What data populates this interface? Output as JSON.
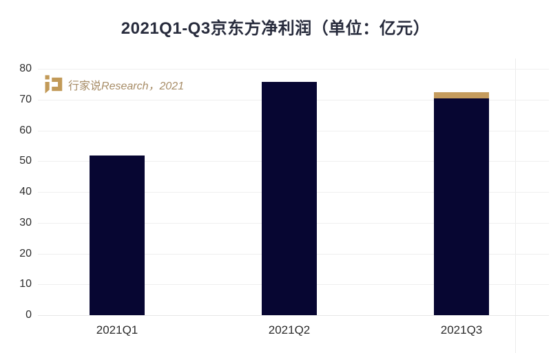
{
  "page": {
    "background": "#ffffff"
  },
  "watermark": {
    "brand": "行家说",
    "suffix": "Research，2021",
    "logo_color": "#c29a58",
    "text_color": "#a78c66"
  },
  "chart_data": {
    "type": "bar",
    "stacked": true,
    "title": "2021Q1-Q3京东方净利润（单位：亿元）",
    "unit": "亿元",
    "categories": [
      "2021Q1",
      "2021Q2",
      "2021Q3"
    ],
    "series": [
      {
        "name": "base",
        "color": "#070632",
        "values": [
          51.8,
          75.8,
          70.5
        ]
      },
      {
        "name": "cap",
        "color": "#c59c5e",
        "values": [
          0,
          0,
          2.0
        ]
      }
    ],
    "ylim": [
      0,
      80
    ],
    "ytick_step": 10,
    "yticks": [
      0,
      10,
      20,
      30,
      40,
      50,
      60,
      70,
      80
    ],
    "grid": true,
    "legend": "none",
    "colors": {
      "bar_navy": "#070632",
      "bar_gold": "#c59c5e",
      "gridline": "#efefef",
      "axis_text": "#2b2b2b",
      "title_text": "#272b3c"
    }
  }
}
